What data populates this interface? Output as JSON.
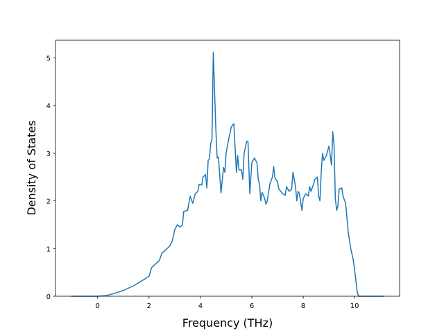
{
  "chart_data": {
    "type": "line",
    "xlabel": "Frequency (THz)",
    "ylabel": "Density of States",
    "xlim": [
      -1.64,
      11.75
    ],
    "ylim": [
      0,
      5.37
    ],
    "xticks": [
      0,
      2,
      4,
      6,
      8,
      10
    ],
    "yticks": [
      0,
      1,
      2,
      3,
      4,
      5
    ],
    "grid": false,
    "series": [
      {
        "color": "#1f77b4",
        "x": [
          -1.03,
          0,
          0.3,
          0.6,
          1.0,
          1.4,
          1.8,
          2.0,
          2.1,
          2.4,
          2.5,
          2.8,
          2.9,
          3.0,
          3.1,
          3.2,
          3.3,
          3.35,
          3.5,
          3.6,
          3.7,
          3.8,
          3.9,
          3.95,
          4.05,
          4.1,
          4.2,
          4.25,
          4.3,
          4.35,
          4.4,
          4.45,
          4.5,
          4.6,
          4.65,
          4.7,
          4.8,
          4.9,
          4.95,
          5.0,
          5.1,
          5.2,
          5.3,
          5.4,
          5.45,
          5.5,
          5.6,
          5.65,
          5.7,
          5.8,
          5.85,
          5.92,
          6.0,
          6.1,
          6.2,
          6.25,
          6.3,
          6.35,
          6.4,
          6.5,
          6.55,
          6.6,
          6.7,
          6.8,
          6.85,
          6.9,
          7.0,
          7.05,
          7.2,
          7.3,
          7.35,
          7.45,
          7.55,
          7.6,
          7.7,
          7.75,
          7.8,
          7.85,
          7.95,
          8.0,
          8.1,
          8.2,
          8.25,
          8.3,
          8.4,
          8.45,
          8.55,
          8.6,
          8.65,
          8.7,
          8.75,
          8.8,
          8.9,
          9.0,
          9.1,
          9.15,
          9.2,
          9.25,
          9.3,
          9.35,
          9.4,
          9.5,
          9.55,
          9.65,
          9.75,
          9.85,
          9.95,
          10.0,
          10.1,
          10.15,
          11.14
        ],
        "values": [
          0,
          0,
          0.01,
          0.05,
          0.12,
          0.22,
          0.35,
          0.42,
          0.6,
          0.75,
          0.9,
          1.05,
          1.15,
          1.4,
          1.5,
          1.45,
          1.5,
          1.78,
          1.8,
          2.1,
          1.95,
          2.15,
          2.2,
          2.35,
          2.33,
          2.5,
          2.55,
          2.27,
          2.85,
          2.88,
          3.2,
          3.3,
          5.12,
          3.5,
          2.9,
          2.92,
          2.17,
          2.7,
          2.6,
          3.0,
          3.3,
          3.55,
          3.62,
          2.6,
          2.95,
          2.65,
          2.65,
          2.45,
          3.0,
          3.25,
          3.25,
          2.15,
          2.8,
          2.9,
          2.8,
          2.45,
          2.35,
          2.0,
          2.18,
          2.05,
          1.93,
          2.0,
          2.35,
          2.5,
          2.72,
          2.48,
          2.4,
          2.25,
          2.15,
          2.12,
          2.3,
          2.2,
          2.25,
          2.6,
          2.3,
          2.0,
          2.2,
          2.15,
          1.8,
          2.05,
          2.15,
          2.1,
          2.3,
          2.2,
          2.35,
          2.45,
          2.5,
          2.1,
          2.0,
          2.6,
          3.0,
          2.85,
          2.95,
          3.15,
          2.75,
          3.45,
          3.15,
          2.05,
          1.8,
          1.9,
          2.25,
          2.27,
          2.1,
          1.95,
          1.35,
          1.0,
          0.75,
          0.55,
          0.1,
          0,
          0
        ]
      }
    ]
  }
}
